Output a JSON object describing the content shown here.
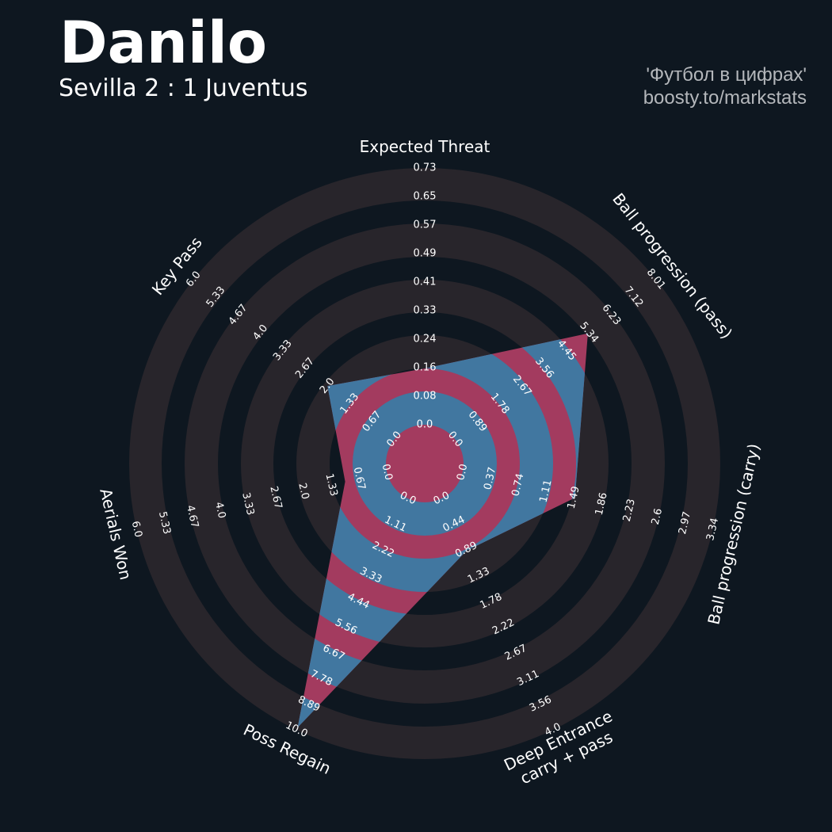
{
  "header": {
    "title": "Danilo",
    "subtitle": "Sevilla 2 : 1 Juventus",
    "credit_line1": "'Футбол в цифрах'",
    "credit_line2": "boosty.to/markstats"
  },
  "colors": {
    "background": "#0e1720",
    "ring": "#28252b",
    "polygon_primary": "#4177a0",
    "polygon_secondary": "#a33b5f",
    "text": "#ffffff",
    "credit_text": "#b4b7bb"
  },
  "chart_data": {
    "type": "radar",
    "title": "Danilo",
    "subtitle": "Sevilla 2 : 1 Juventus",
    "params": [
      {
        "label": "Expected Threat",
        "value": 0.16,
        "min": 0.0,
        "max": 0.73,
        "ticks": [
          "0.0",
          "0.08",
          "0.16",
          "0.24",
          "0.33",
          "0.41",
          "0.49",
          "0.57",
          "0.65",
          "0.73"
        ]
      },
      {
        "label": "Ball progression (pass)",
        "value": 5.3,
        "min": 0.0,
        "max": 8.01,
        "ticks": [
          "0.0",
          "0.89",
          "1.78",
          "2.67",
          "3.56",
          "4.45",
          "5.34",
          "6.23",
          "7.12",
          "8.01"
        ]
      },
      {
        "label": "Ball progression (carry)",
        "value": 1.5,
        "min": 0.0,
        "max": 3.34,
        "ticks": [
          "0.0",
          "0.37",
          "0.74",
          "1.11",
          "1.49",
          "1.86",
          "2.23",
          "2.6",
          "2.97",
          "3.34"
        ]
      },
      {
        "label": "Deep Entrance\ncarry + pass",
        "value": 0.9,
        "min": 0.0,
        "max": 4.0,
        "ticks": [
          "0.0",
          "0.44",
          "0.89",
          "1.33",
          "1.78",
          "2.22",
          "2.67",
          "3.11",
          "3.56",
          "4.0"
        ]
      },
      {
        "label": "Poss Regain",
        "value": 9.9,
        "min": 0.0,
        "max": 10.0,
        "ticks": [
          "0.0",
          "1.11",
          "2.22",
          "3.33",
          "4.44",
          "5.56",
          "6.67",
          "7.78",
          "8.89",
          "10.0"
        ]
      },
      {
        "label": "Aerials Won",
        "value": 1.0,
        "min": 0.0,
        "max": 6.0,
        "ticks": [
          "0.0",
          "0.67",
          "1.33",
          "2.0",
          "2.67",
          "3.33",
          "4.0",
          "4.67",
          "5.33",
          "6.0"
        ]
      },
      {
        "label": "Key Pass",
        "value": 2.0,
        "min": 0.0,
        "max": 6.0,
        "ticks": [
          "0.0",
          "0.67",
          "1.33",
          "2.0",
          "2.67",
          "3.33",
          "4.0",
          "4.67",
          "5.33",
          "6.0"
        ]
      }
    ],
    "grid": true,
    "legend": "none"
  }
}
